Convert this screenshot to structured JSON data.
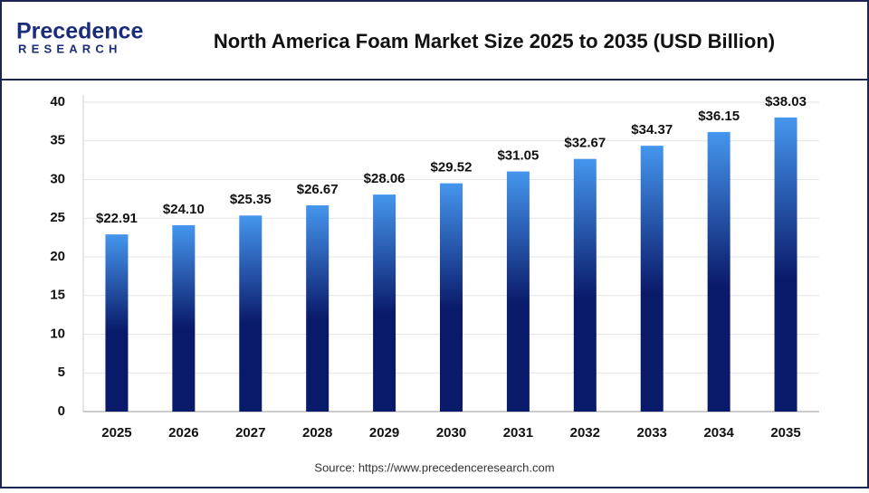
{
  "logo": {
    "name": "Precedence",
    "tagline": "RESEARCH"
  },
  "source": "Source: https://www.precedenceresearch.com",
  "chart_data": {
    "type": "bar",
    "title": "North America Foam Market Size 2025 to 2035 (USD Billion)",
    "categories": [
      "2025",
      "2026",
      "2027",
      "2028",
      "2029",
      "2030",
      "2031",
      "2032",
      "2033",
      "2034",
      "2035"
    ],
    "values": [
      22.91,
      24.1,
      25.35,
      26.67,
      28.06,
      29.52,
      31.05,
      32.67,
      34.37,
      36.15,
      38.03
    ],
    "value_labels": [
      "$22.91",
      "$24.10",
      "$25.35",
      "$26.67",
      "$28.06",
      "$29.52",
      "$31.05",
      "$32.67",
      "$34.37",
      "$36.15",
      "$38.03"
    ],
    "color": [
      "#4596ee",
      "#0a1a6a"
    ],
    "ylim": [
      0,
      40
    ],
    "yticks": [
      0,
      5,
      10,
      15,
      20,
      25,
      30,
      35,
      40
    ],
    "grid": true
  }
}
